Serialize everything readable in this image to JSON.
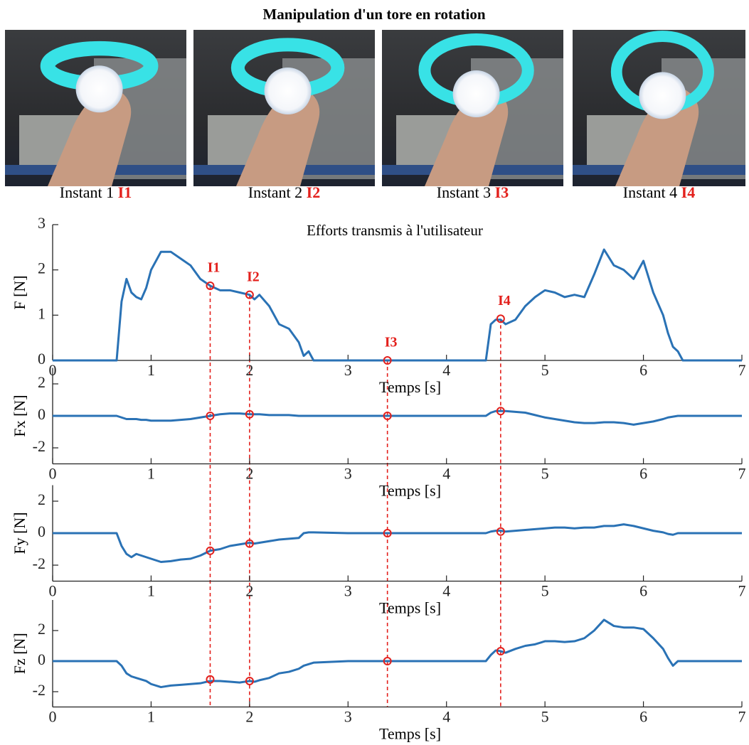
{
  "title": "Manipulation d'un tore en rotation",
  "photos": [
    {
      "caption": "Instant 1",
      "tag": "I1"
    },
    {
      "caption": "Instant 2",
      "tag": "I2"
    },
    {
      "caption": "Instant 3",
      "tag": "I3"
    },
    {
      "caption": "Instant 4",
      "tag": "I4"
    }
  ],
  "chart_data": [
    {
      "type": "line",
      "title": "Efforts transmis à l'utilisateur",
      "ylabel": "F [N]",
      "xlabel": "Temps [s]",
      "xlim": [
        0,
        7
      ],
      "ylim": [
        0,
        3
      ],
      "xticks": [
        0,
        1,
        2,
        3,
        4,
        5,
        6,
        7
      ],
      "yticks": [
        0,
        1,
        2,
        3
      ],
      "color": "#2a72b5",
      "x": [
        0,
        0.6,
        0.65,
        0.7,
        0.75,
        0.8,
        0.85,
        0.9,
        0.95,
        1.0,
        1.1,
        1.2,
        1.3,
        1.4,
        1.5,
        1.6,
        1.7,
        1.8,
        1.9,
        2.0,
        2.05,
        2.1,
        2.2,
        2.3,
        2.4,
        2.5,
        2.55,
        2.6,
        2.65,
        3.0,
        3.5,
        4.0,
        4.4,
        4.45,
        4.5,
        4.55,
        4.6,
        4.7,
        4.8,
        4.9,
        5.0,
        5.1,
        5.2,
        5.3,
        5.4,
        5.5,
        5.6,
        5.7,
        5.8,
        5.9,
        6.0,
        6.1,
        6.2,
        6.25,
        6.3,
        6.35,
        6.4,
        7.0
      ],
      "values": [
        0,
        0,
        0,
        1.3,
        1.8,
        1.5,
        1.4,
        1.35,
        1.6,
        2.0,
        2.4,
        2.4,
        2.25,
        2.1,
        1.8,
        1.65,
        1.55,
        1.55,
        1.5,
        1.45,
        1.35,
        1.45,
        1.2,
        0.8,
        0.7,
        0.4,
        0.1,
        0.2,
        0,
        0,
        0,
        0,
        0,
        0.8,
        0.9,
        0.9,
        0.8,
        0.9,
        1.2,
        1.4,
        1.55,
        1.5,
        1.4,
        1.45,
        1.4,
        1.9,
        2.45,
        2.1,
        2.0,
        1.8,
        2.2,
        1.5,
        1.0,
        0.6,
        0.3,
        0.2,
        0,
        0
      ],
      "markers": {
        "color": "#e3201c",
        "x": [
          1.6,
          2.0,
          3.4,
          4.55
        ],
        "y": [
          1.65,
          1.45,
          0,
          0.92
        ],
        "labels": [
          "I1",
          "I2",
          "I3",
          "I4"
        ]
      }
    },
    {
      "type": "line",
      "ylabel": "Fx [N]",
      "xlabel": "Temps [s]",
      "xlim": [
        0,
        7
      ],
      "ylim": [
        -3,
        3
      ],
      "xticks": [
        0,
        1,
        2,
        3,
        4,
        5,
        6,
        7
      ],
      "yticks": [
        -2,
        0,
        2
      ],
      "color": "#2a72b5",
      "x": [
        0,
        0.6,
        0.65,
        0.7,
        0.75,
        0.8,
        0.85,
        0.9,
        0.95,
        1.0,
        1.1,
        1.2,
        1.3,
        1.4,
        1.5,
        1.6,
        1.7,
        1.8,
        1.9,
        2.0,
        2.05,
        2.1,
        2.2,
        2.3,
        2.4,
        2.5,
        2.55,
        2.6,
        2.65,
        3.0,
        3.5,
        4.0,
        4.4,
        4.45,
        4.5,
        4.55,
        4.6,
        4.7,
        4.8,
        4.9,
        5.0,
        5.1,
        5.2,
        5.3,
        5.4,
        5.5,
        5.6,
        5.7,
        5.8,
        5.9,
        6.0,
        6.1,
        6.2,
        6.25,
        6.3,
        6.35,
        6.4,
        7.0
      ],
      "values": [
        0,
        0,
        0,
        -0.1,
        -0.2,
        -0.2,
        -0.2,
        -0.25,
        -0.25,
        -0.3,
        -0.3,
        -0.3,
        -0.25,
        -0.2,
        -0.1,
        0,
        0.1,
        0.15,
        0.15,
        0.1,
        0.1,
        0.1,
        0.05,
        0.05,
        0.05,
        0,
        0,
        0,
        0,
        0,
        0,
        0,
        0,
        0.2,
        0.3,
        0.3,
        0.3,
        0.25,
        0.2,
        0.05,
        -0.1,
        -0.2,
        -0.3,
        -0.4,
        -0.45,
        -0.45,
        -0.4,
        -0.4,
        -0.45,
        -0.55,
        -0.45,
        -0.35,
        -0.2,
        -0.1,
        -0.05,
        0,
        0,
        0
      ],
      "markers": {
        "color": "#e3201c",
        "x": [
          1.6,
          2.0,
          3.4,
          4.55
        ],
        "y": [
          0,
          0.1,
          0,
          0.3
        ]
      }
    },
    {
      "type": "line",
      "ylabel": "Fy [N]",
      "xlabel": "Temps [s]",
      "xlim": [
        0,
        7
      ],
      "ylim": [
        -3,
        3
      ],
      "xticks": [
        0,
        1,
        2,
        3,
        4,
        5,
        6,
        7
      ],
      "yticks": [
        -2,
        0,
        2
      ],
      "color": "#2a72b5",
      "x": [
        0,
        0.6,
        0.65,
        0.7,
        0.75,
        0.8,
        0.85,
        0.9,
        0.95,
        1.0,
        1.1,
        1.2,
        1.3,
        1.4,
        1.5,
        1.6,
        1.7,
        1.8,
        1.9,
        2.0,
        2.05,
        2.1,
        2.2,
        2.3,
        2.4,
        2.5,
        2.55,
        2.6,
        2.65,
        3.0,
        3.5,
        4.0,
        4.4,
        4.45,
        4.5,
        4.55,
        4.6,
        4.7,
        4.8,
        4.9,
        5.0,
        5.1,
        5.2,
        5.3,
        5.4,
        5.5,
        5.6,
        5.7,
        5.8,
        5.9,
        6.0,
        6.1,
        6.2,
        6.25,
        6.3,
        6.35,
        6.4,
        7.0
      ],
      "values": [
        0,
        0,
        0,
        -0.8,
        -1.3,
        -1.5,
        -1.3,
        -1.4,
        -1.5,
        -1.6,
        -1.8,
        -1.75,
        -1.65,
        -1.6,
        -1.4,
        -1.1,
        -1.0,
        -0.8,
        -0.7,
        -0.6,
        -0.65,
        -0.6,
        -0.5,
        -0.4,
        -0.35,
        -0.3,
        0,
        0.05,
        0.05,
        0,
        0,
        0,
        0,
        0.1,
        0.15,
        0.15,
        0.1,
        0.15,
        0.2,
        0.25,
        0.3,
        0.35,
        0.35,
        0.3,
        0.35,
        0.35,
        0.45,
        0.45,
        0.55,
        0.45,
        0.3,
        0.15,
        0.05,
        -0.05,
        -0.1,
        0,
        0,
        0
      ],
      "markers": {
        "color": "#e3201c",
        "x": [
          1.6,
          2.0,
          3.4,
          4.55
        ],
        "y": [
          -1.1,
          -0.65,
          0,
          0.1
        ]
      }
    },
    {
      "type": "line",
      "ylabel": "Fz [N]",
      "xlabel": "Temps [s]",
      "xlim": [
        0,
        7
      ],
      "ylim": [
        -3,
        4
      ],
      "xticks": [
        0,
        1,
        2,
        3,
        4,
        5,
        6,
        7
      ],
      "yticks": [
        -2,
        0,
        2
      ],
      "color": "#2a72b5",
      "x": [
        0,
        0.6,
        0.65,
        0.7,
        0.75,
        0.8,
        0.85,
        0.9,
        0.95,
        1.0,
        1.1,
        1.2,
        1.3,
        1.4,
        1.5,
        1.6,
        1.7,
        1.8,
        1.9,
        2.0,
        2.05,
        2.1,
        2.2,
        2.3,
        2.4,
        2.5,
        2.55,
        2.6,
        2.65,
        3.0,
        3.5,
        4.0,
        4.4,
        4.45,
        4.5,
        4.55,
        4.6,
        4.7,
        4.8,
        4.9,
        5.0,
        5.1,
        5.2,
        5.3,
        5.4,
        5.5,
        5.6,
        5.7,
        5.8,
        5.9,
        6.0,
        6.1,
        6.2,
        6.25,
        6.3,
        6.35,
        6.4,
        7.0
      ],
      "values": [
        0,
        0,
        0,
        -0.3,
        -0.8,
        -1.0,
        -1.1,
        -1.2,
        -1.3,
        -1.5,
        -1.7,
        -1.6,
        -1.55,
        -1.5,
        -1.45,
        -1.3,
        -1.3,
        -1.35,
        -1.4,
        -1.3,
        -1.35,
        -1.25,
        -1.1,
        -0.8,
        -0.7,
        -0.5,
        -0.3,
        -0.2,
        -0.1,
        0,
        0,
        0,
        0,
        0.4,
        0.7,
        0.65,
        0.55,
        0.8,
        1.0,
        1.1,
        1.3,
        1.3,
        1.25,
        1.3,
        1.5,
        2.0,
        2.7,
        2.3,
        2.2,
        2.2,
        2.1,
        1.5,
        0.8,
        0.2,
        -0.3,
        0,
        0,
        0
      ],
      "markers": {
        "color": "#e3201c",
        "x": [
          1.6,
          2.0,
          3.4,
          4.55
        ],
        "y": [
          -1.2,
          -1.3,
          0,
          0.65
        ]
      }
    }
  ]
}
